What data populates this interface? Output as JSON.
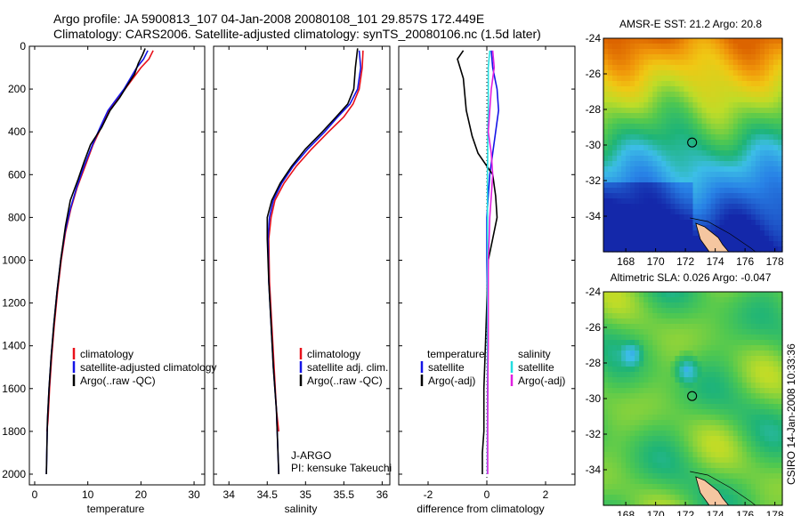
{
  "title_line1": "Argo profile: JA 5900813_107 04-Jan-2008 20080108_101 29.857S 172.449E",
  "title_line2": "Climatology: CARS2006. Satellite-adjusted climatology: synTS_20080106.nc (1.5d later)",
  "credit": "CSIRO 14-Jan-2008 10:33:36",
  "colors": {
    "climatology": "#e8101a",
    "satellite": "#1414e6",
    "argo": "#000000",
    "sat_sal": "#22dde0",
    "argo_sal": "#e020e0"
  },
  "panels": {
    "temperature": {
      "xlabel": "temperature",
      "xticks": [
        "0",
        "10",
        "20",
        "30"
      ],
      "legend": [
        "climatology",
        "satellite-adjusted climatology",
        "Argo(..raw -QC)"
      ]
    },
    "salinity": {
      "xlabel": "salinity",
      "xticks": [
        "34",
        "34.5",
        "35",
        "35.5",
        "36"
      ],
      "legend": [
        "climatology",
        "satellite adj. clim.",
        "Argo(..raw -QC)"
      ],
      "note1": "J-ARGO",
      "note2": "PI: kensuke Takeuchi"
    },
    "difference": {
      "xlabel": "difference from climatology",
      "xticks": [
        "-2",
        "0",
        "2"
      ],
      "legend_left_head": "temperature",
      "legend_left": [
        "satellite",
        "Argo(-adj)"
      ],
      "legend_right_head": "salinity",
      "legend_right": [
        "satellite",
        "Argo(-adj)"
      ]
    },
    "depth_ticks": [
      "0",
      "200",
      "400",
      "600",
      "800",
      "1000",
      "1200",
      "1400",
      "1600",
      "1800",
      "2000"
    ]
  },
  "maps": {
    "sst_title": "AMSR-E SST: 21.2 Argo: 20.8",
    "sla_title": "Altimetric SLA: 0.026 Argo: -0.047",
    "lat_ticks": [
      "-24",
      "-26",
      "-28",
      "-30",
      "-32",
      "-34"
    ],
    "lon_ticks": [
      "168",
      "170",
      "172",
      "174",
      "176",
      "178"
    ],
    "profile_position": {
      "lon": 172.449,
      "lat": -29.857
    }
  },
  "chart_data": [
    {
      "type": "line",
      "title": "",
      "xlabel": "temperature",
      "ylabel": "",
      "xlim": [
        -1,
        32
      ],
      "ylim": [
        2050,
        0
      ],
      "y_reversed": true,
      "series": [
        {
          "name": "climatology",
          "x": [
            22.3,
            21.5,
            20,
            18.5,
            17,
            15.5,
            14,
            12.5,
            11,
            9.5,
            8,
            6.8,
            5.8,
            5,
            4.3,
            3.7,
            3.2,
            2.8,
            2.5,
            2.3
          ],
          "y": [
            20,
            60,
            100,
            150,
            200,
            250,
            300,
            380,
            460,
            560,
            660,
            760,
            870,
            1000,
            1150,
            1300,
            1450,
            1600,
            1750,
            1800
          ]
        },
        {
          "name": "satellite-adjusted climatology",
          "x": [
            21.3,
            20.5,
            19.2,
            18,
            16.8,
            15.3,
            13.8,
            12.3,
            10.9,
            9.3,
            7.9,
            6.7,
            5.7,
            4.9,
            4.2,
            3.6,
            3.1,
            2.7,
            2.4,
            2.2
          ],
          "y": [
            20,
            60,
            100,
            150,
            200,
            250,
            300,
            380,
            460,
            560,
            660,
            760,
            870,
            1000,
            1150,
            1300,
            1450,
            1600,
            1750,
            2000
          ]
        },
        {
          "name": "Argo(..raw -QC)",
          "x": [
            20.8,
            20.3,
            19.5,
            18.8,
            17.5,
            16,
            14.2,
            12.6,
            10.5,
            9.3,
            8.2,
            6.7,
            5.8,
            4.9,
            4.2,
            3.6,
            3.1,
            2.7,
            2.4,
            2.2
          ],
          "y": [
            10,
            40,
            80,
            130,
            180,
            240,
            300,
            380,
            460,
            540,
            620,
            720,
            840,
            1000,
            1150,
            1300,
            1450,
            1600,
            1750,
            2000
          ]
        }
      ]
    },
    {
      "type": "line",
      "title": "",
      "xlabel": "salinity",
      "ylabel": "",
      "xlim": [
        33.8,
        36.1
      ],
      "ylim": [
        2050,
        0
      ],
      "y_reversed": true,
      "series": [
        {
          "name": "climatology",
          "x": [
            35.75,
            35.74,
            35.7,
            35.62,
            35.5,
            35.3,
            35.08,
            34.88,
            34.72,
            34.6,
            34.55,
            34.52,
            34.53,
            34.56,
            34.59,
            34.62,
            34.65
          ],
          "y": [
            20,
            100,
            200,
            270,
            330,
            400,
            480,
            560,
            640,
            720,
            800,
            900,
            1100,
            1300,
            1500,
            1700,
            1800
          ]
        },
        {
          "name": "satellite adj. clim.",
          "x": [
            35.7,
            35.72,
            35.68,
            35.58,
            35.42,
            35.25,
            35.03,
            34.84,
            34.69,
            34.58,
            34.53,
            34.51,
            34.52,
            34.55,
            34.58,
            34.62,
            34.65
          ],
          "y": [
            20,
            100,
            200,
            270,
            330,
            400,
            480,
            560,
            640,
            720,
            800,
            900,
            1100,
            1300,
            1500,
            1700,
            2000
          ]
        },
        {
          "name": "Argo(..raw -QC)",
          "x": [
            35.68,
            35.65,
            35.63,
            35.55,
            35.4,
            35.22,
            35.0,
            34.82,
            34.67,
            34.56,
            34.5,
            34.5,
            34.52,
            34.55,
            34.58,
            34.62,
            34.65
          ],
          "y": [
            10,
            100,
            200,
            270,
            330,
            400,
            480,
            560,
            640,
            720,
            800,
            900,
            1100,
            1300,
            1500,
            1700,
            2000
          ]
        }
      ]
    },
    {
      "type": "line",
      "title": "",
      "xlabel": "difference from climatology",
      "ylabel": "",
      "xlim": [
        -3,
        3
      ],
      "ylim": [
        2050,
        0
      ],
      "y_reversed": true,
      "series": [
        {
          "name": "temperature satellite",
          "x": [
            0.15,
            0.2,
            0.35,
            0.4,
            0.3,
            0.2,
            0.1,
            0.05,
            0,
            0,
            0,
            0.02,
            0.03,
            0.03,
            0.02,
            0.02,
            0.02
          ],
          "y": [
            20,
            100,
            200,
            300,
            400,
            500,
            600,
            700,
            800,
            900,
            1000,
            1200,
            1400,
            1600,
            1800,
            1900,
            2000
          ]
        },
        {
          "name": "temperature Argo(-adj)",
          "x": [
            -0.8,
            -1.0,
            -0.8,
            -0.7,
            -0.5,
            -0.3,
            0.2,
            0.3,
            0.35,
            0.2,
            0.05,
            0,
            -0.05,
            -0.1,
            -0.1,
            -0.15,
            -0.15
          ],
          "y": [
            20,
            60,
            150,
            300,
            420,
            500,
            600,
            700,
            800,
            900,
            1000,
            1200,
            1400,
            1600,
            1800,
            1900,
            2000
          ]
        },
        {
          "name": "salinity satellite",
          "x": [
            0.1,
            0.05,
            0.05,
            0.05,
            0.03,
            0.03,
            0.02,
            0.02,
            0.02,
            0.02,
            0.02,
            0.02,
            0.02,
            0.02,
            0.02,
            0.02
          ],
          "y": [
            20,
            100,
            200,
            300,
            400,
            500,
            600,
            700,
            800,
            900,
            1000,
            1200,
            1400,
            1600,
            1800,
            2000
          ]
        },
        {
          "name": "salinity Argo(-adj)",
          "x": [
            0.2,
            0.25,
            0.15,
            0.1,
            0.05,
            0.15,
            0.2,
            0.15,
            0.1,
            0.08,
            0.05,
            0.05,
            0.05,
            0.03,
            0.03,
            0.03
          ],
          "y": [
            20,
            100,
            200,
            300,
            400,
            500,
            600,
            700,
            800,
            900,
            1000,
            1200,
            1400,
            1600,
            1800,
            2000
          ]
        }
      ]
    },
    {
      "type": "heatmap",
      "title": "AMSR-E SST: 21.2 Argo: 20.8",
      "xlim": [
        166.5,
        178.5
      ],
      "ylim": [
        -36,
        -24
      ],
      "xlabel": "",
      "ylabel": ""
    },
    {
      "type": "heatmap",
      "title": "Altimetric SLA: 0.026 Argo: -0.047",
      "xlim": [
        166.5,
        178.5
      ],
      "ylim": [
        -36,
        -24
      ],
      "xlabel": "",
      "ylabel": ""
    }
  ]
}
